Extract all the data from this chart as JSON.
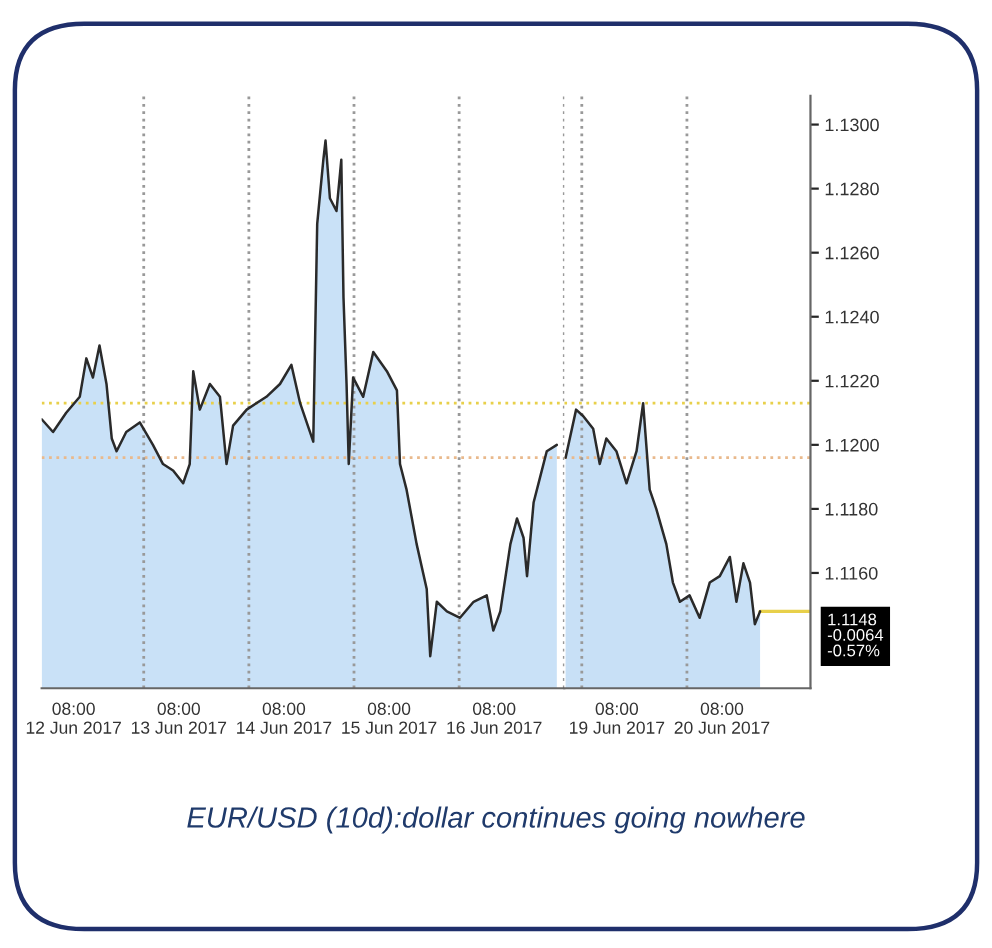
{
  "chart_data": [
    {
      "type": "area",
      "x": [
        "2017-06-12T00:42",
        "2017-06-12T03:18",
        "2017-06-12T06:18",
        "2017-06-12T09:24",
        "2017-06-12T10:54",
        "2017-06-12T12:24",
        "2017-06-12T13:54",
        "2017-06-12T15:30",
        "2017-06-12T16:42",
        "2017-06-12T17:48",
        "2017-06-12T20:00",
        "2017-06-12T23:06",
        "2017-06-13T02:06",
        "2017-06-13T04:24",
        "2017-06-13T06:42",
        "2017-06-13T09:00",
        "2017-06-13T10:30",
        "2017-06-13T11:18",
        "2017-06-13T12:48",
        "2017-06-13T15:06",
        "2017-06-13T17:24",
        "2017-06-13T18:54",
        "2017-06-13T20:24",
        "2017-06-13T23:30",
        "2017-06-14T04:00",
        "2017-06-14T07:06",
        "2017-06-14T09:42",
        "2017-06-14T11:42",
        "2017-06-14T14:42",
        "2017-06-14T15:36",
        "2017-06-14T17:00",
        "2017-06-14T17:30",
        "2017-06-14T18:30",
        "2017-06-14T20:00",
        "2017-06-14T21:06",
        "2017-06-14T21:36",
        "2017-06-14T22:18",
        "2017-06-14T22:48",
        "2017-06-14T23:48",
        "2017-06-15T02:06",
        "2017-06-15T04:24",
        "2017-06-15T07:30",
        "2017-06-15T09:48",
        "2017-06-15T10:30",
        "2017-06-15T12:00",
        "2017-06-15T14:18",
        "2017-06-15T16:36",
        "2017-06-15T17:24",
        "2017-06-15T18:54",
        "2017-06-15T21:12",
        "2017-06-16T00:12",
        "2017-06-16T03:18",
        "2017-06-16T06:18",
        "2017-06-16T07:48",
        "2017-06-16T09:24",
        "2017-06-16T11:42",
        "2017-06-16T13:12",
        "2017-06-16T14:42",
        "2017-06-16T15:30",
        "2017-06-16T17:00",
        "2017-06-16T18:30",
        "2017-06-16T20:00",
        "2017-06-16T22:18"
      ],
      "series": [
        {
          "color": "#c9e1f7",
          "values": [
            1.1208,
            1.1204,
            1.121,
            1.1215,
            1.1227,
            1.1221,
            1.1231,
            1.1219,
            1.1202,
            1.1198,
            1.1204,
            1.1207,
            1.12,
            1.1194,
            1.1192,
            1.1188,
            1.1194,
            1.1223,
            1.1211,
            1.1219,
            1.1215,
            1.1194,
            1.1206,
            1.1211,
            1.1215,
            1.1219,
            1.1225,
            1.1213,
            1.1201,
            1.1269,
            1.1289,
            1.1295,
            1.1277,
            1.1273,
            1.1289,
            1.1246,
            1.1219,
            1.1194,
            1.1221,
            1.1215,
            1.1229,
            1.1223,
            1.1217,
            1.1194,
            1.1186,
            1.1169,
            1.1155,
            1.1134,
            1.1151,
            1.1148,
            1.1146,
            1.1151,
            1.1153,
            1.1142,
            1.1148,
            1.1169,
            1.1177,
            1.1171,
            1.1159,
            1.1182,
            1.119,
            1.1198,
            1.12
          ]
        }
      ],
      "xlim": [
        "2017-06-12T00:42",
        "2017-06-17T00:00"
      ],
      "xticks": [
        {
          "value": "2017-06-12T08:00",
          "label": "08:00\n12 Jun 2017"
        },
        {
          "value": "2017-06-13T08:00",
          "label": "08:00\n13 Jun 2017"
        },
        {
          "value": "2017-06-14T08:00",
          "label": "08:00\n14 Jun 2017"
        },
        {
          "value": "2017-06-15T08:00",
          "label": "08:00\n15 Jun 2017"
        },
        {
          "value": "2017-06-16T08:00",
          "label": "08:00\n16 Jun 2017"
        }
      ],
      "ylim": [
        1.1124,
        1.1309
      ],
      "tick_labels": "x",
      "ref_lines": [
        {
          "axis": "y",
          "value": 1.1213,
          "color": "#e8d04a",
          "line_style": "dotted"
        },
        {
          "axis": "y",
          "value": 1.1196,
          "color": "#e9b98c",
          "line_style": "dotted"
        },
        {
          "axis": "x",
          "value": "2017-06-13T00:00",
          "color": "#999999",
          "line_style": "dotted"
        },
        {
          "axis": "x",
          "value": "2017-06-14T00:00",
          "color": "#999999",
          "line_style": "dotted"
        },
        {
          "axis": "x",
          "value": "2017-06-15T00:00",
          "color": "#999999",
          "line_style": "dotted"
        },
        {
          "axis": "x",
          "value": "2017-06-16T00:00",
          "color": "#999999",
          "line_style": "dotted"
        },
        {
          "axis": "x",
          "value": "2017-06-17T00:00",
          "color": "#999999",
          "line_style": "dotted"
        }
      ],
      "annotations": [
        "EUR/USD (10d):dollar continues going nowhere"
      ],
      "grid": false,
      "legend": false
    },
    {
      "type": "area",
      "x": [
        "2017-06-18T20:18",
        "2017-06-18T22:42",
        "2017-06-19T00:18",
        "2017-06-19T02:36",
        "2017-06-19T04:06",
        "2017-06-19T05:36",
        "2017-06-19T07:54",
        "2017-06-19T10:12",
        "2017-06-19T12:30",
        "2017-06-19T14:00",
        "2017-06-19T15:30",
        "2017-06-19T17:00",
        "2017-06-19T19:18",
        "2017-06-19T20:48",
        "2017-06-19T22:24",
        "2017-06-20T00:36",
        "2017-06-20T02:54",
        "2017-06-20T05:12",
        "2017-06-20T07:30",
        "2017-06-20T09:48",
        "2017-06-20T11:18",
        "2017-06-20T12:54",
        "2017-06-20T14:24",
        "2017-06-20T15:30",
        "2017-06-20T16:42"
      ],
      "series": [
        {
          "color": "#c8e0f6",
          "values": [
            1.1196,
            1.1211,
            1.1209,
            1.1205,
            1.1194,
            1.1202,
            1.1198,
            1.1188,
            1.1198,
            1.1213,
            1.1186,
            1.118,
            1.1169,
            1.1157,
            1.1151,
            1.1153,
            1.1146,
            1.1157,
            1.1159,
            1.1165,
            1.1151,
            1.1163,
            1.1157,
            1.1144,
            1.1148
          ]
        }
      ],
      "xlim": [
        "2017-06-18T20:00",
        "2017-06-21T04:12"
      ],
      "xticks": [
        {
          "value": "2017-06-19T08:00",
          "label": "08:00\n19 Jun 2017"
        },
        {
          "value": "2017-06-20T08:00",
          "label": "08:00\n20 Jun 2017"
        }
      ],
      "ylim": [
        1.1124,
        1.1309
      ],
      "yticks": [
        {
          "value": 1.116,
          "label": "1.1160"
        },
        {
          "value": 1.118,
          "label": "1.1180"
        },
        {
          "value": 1.12,
          "label": "1.1200"
        },
        {
          "value": 1.122,
          "label": "1.1220"
        },
        {
          "value": 1.124,
          "label": "1.1240"
        },
        {
          "value": 1.126,
          "label": "1.1260"
        },
        {
          "value": 1.128,
          "label": "1.1280"
        },
        {
          "value": 1.13,
          "label": "1.1300"
        }
      ],
      "ref_lines": [
        {
          "axis": "y",
          "value": 1.1213,
          "color": "#e8d04a",
          "line_style": "dotted"
        },
        {
          "axis": "y",
          "value": 1.1196,
          "color": "#e9b98c",
          "line_style": "dotted"
        },
        {
          "axis": "y",
          "value": 1.1148,
          "color": "#e8d04a",
          "line_style": "solid",
          "label": "1.1148\n-0.0064\n-0.57%"
        },
        {
          "axis": "x",
          "value": "2017-06-19T00:00",
          "color": "#999999",
          "line_style": "dotted"
        },
        {
          "axis": "x",
          "value": "2017-06-20T00:00",
          "color": "#999999",
          "line_style": "dotted"
        }
      ],
      "grid": false,
      "legend": false
    }
  ]
}
